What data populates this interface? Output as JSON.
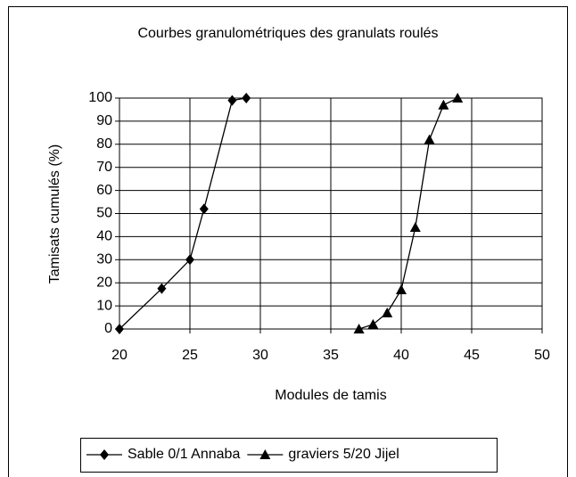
{
  "chart_data": {
    "type": "line",
    "title": "Courbes granulométriques des granulats roulés",
    "x_label": "Modules de tamis",
    "y_label": "Tamisats cumulés (%)",
    "series": [
      {
        "name": "Sable 0/1 Annaba",
        "color": "#000000",
        "marker": "diamond",
        "x": [
          20,
          23,
          25,
          26,
          28,
          29
        ],
        "values": [
          0,
          17.5,
          30,
          52,
          99,
          100
        ]
      },
      {
        "name": "graviers 5/20 Jijel",
        "color": "#000000",
        "marker": "triangle",
        "x": [
          37,
          38,
          39,
          40,
          41,
          42,
          43,
          44
        ],
        "values": [
          0,
          2,
          7,
          17,
          44,
          82,
          97,
          100
        ]
      }
    ],
    "xlim": [
      20,
      50
    ],
    "xticks": [
      20,
      25,
      30,
      35,
      40,
      45,
      50
    ],
    "ylim": [
      0,
      100
    ],
    "yticks": [
      0,
      10,
      20,
      30,
      40,
      50,
      60,
      70,
      80,
      90,
      100
    ],
    "grid": true,
    "legend": "bottom"
  }
}
